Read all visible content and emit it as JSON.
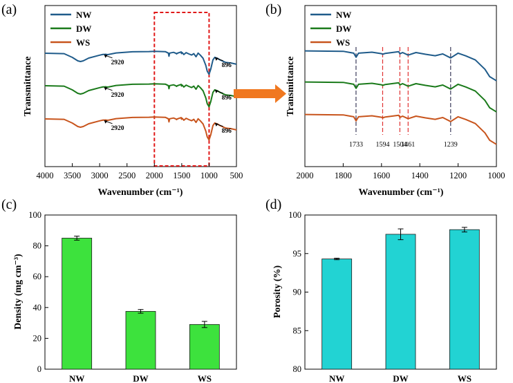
{
  "colors": {
    "NW": "#1f5b8a",
    "DW": "#1a7a1a",
    "WS": "#c8541c",
    "density_bar": "#3de23d",
    "porosity_bar": "#22d3d3",
    "highlight": "#e01818",
    "arrow": "#f07820",
    "peak_dark": "#3a3a5a",
    "peak_red": "#e03030"
  },
  "chart_data": [
    {
      "type": "line",
      "panel": "(a)",
      "title": "",
      "xlabel": "Wavenumber (cm⁻¹)",
      "ylabel": "Transmittance",
      "xlim": [
        4000,
        500
      ],
      "xticks": [
        4000,
        3500,
        3000,
        2500,
        2000,
        1500,
        1000,
        500
      ],
      "highlight_region": [
        2000,
        1000
      ],
      "legend": [
        "NW",
        "DW",
        "WS"
      ],
      "legend_position": "top-left",
      "series": [
        {
          "name": "NW",
          "x": [
            4000,
            3650,
            3500,
            3400,
            3350,
            3300,
            3200,
            3000,
            2935,
            2920,
            2900,
            2850,
            2700,
            2400,
            2100,
            2000,
            1800,
            1745,
            1733,
            1720,
            1650,
            1600,
            1594,
            1580,
            1510,
            1504,
            1490,
            1461,
            1420,
            1370,
            1320,
            1280,
            1239,
            1200,
            1160,
            1110,
            1060,
            1035,
            1000,
            970,
            930,
            896,
            850,
            800,
            700,
            600,
            500
          ],
          "y": [
            4,
            4.6,
            10,
            15,
            16,
            15,
            11,
            6.8,
            5.6,
            5.8,
            5.5,
            6.0,
            3.6,
            1.9,
            1.6,
            1.2,
            1.7,
            3.8,
            8.3,
            3.8,
            2.7,
            4.3,
            5.0,
            4.0,
            2.1,
            4.5,
            3.1,
            5.9,
            3.1,
            5.0,
            6.6,
            4.6,
            9.1,
            3.8,
            6.8,
            11.3,
            21.7,
            29.9,
            34.5,
            27.1,
            13.6,
            9.9,
            11.3,
            13.6,
            17.2,
            18.1,
            19.9
          ]
        },
        {
          "name": "DW",
          "x": [
            4000,
            3650,
            3500,
            3400,
            3350,
            3300,
            3200,
            3000,
            2935,
            2920,
            2900,
            2850,
            2700,
            2400,
            2100,
            2000,
            1800,
            1745,
            1733,
            1720,
            1650,
            1600,
            1594,
            1580,
            1510,
            1504,
            1490,
            1461,
            1420,
            1370,
            1320,
            1280,
            1239,
            1200,
            1160,
            1110,
            1060,
            1035,
            1000,
            970,
            930,
            896,
            850,
            800,
            700,
            600,
            500
          ],
          "y": [
            4,
            4.6,
            10,
            15,
            16,
            15,
            11,
            6.8,
            5.6,
            5.8,
            5.5,
            6.0,
            3.6,
            1.9,
            1.6,
            1.2,
            1.7,
            3.8,
            8.3,
            3.8,
            2.7,
            4.3,
            5.0,
            4.0,
            2.1,
            4.5,
            3.1,
            5.9,
            3.1,
            5.0,
            6.6,
            4.6,
            9.1,
            3.8,
            6.8,
            11.3,
            21.7,
            29.9,
            34.5,
            27.1,
            13.6,
            9.9,
            11.3,
            13.6,
            17.2,
            18.1,
            19.9
          ]
        },
        {
          "name": "WS",
          "x": [
            4000,
            3650,
            3500,
            3400,
            3350,
            3300,
            3200,
            3000,
            2935,
            2920,
            2900,
            2850,
            2700,
            2400,
            2100,
            2000,
            1800,
            1745,
            1733,
            1720,
            1650,
            1600,
            1594,
            1580,
            1510,
            1504,
            1490,
            1461,
            1420,
            1370,
            1320,
            1280,
            1239,
            1200,
            1160,
            1110,
            1060,
            1035,
            1000,
            970,
            930,
            896,
            850,
            800,
            700,
            600,
            500
          ],
          "y": [
            4,
            4.6,
            10,
            15,
            16,
            15,
            11,
            6.8,
            5.6,
            5.8,
            5.5,
            6.0,
            3.6,
            1.9,
            1.6,
            1.2,
            1.7,
            3.8,
            8.3,
            3.8,
            2.7,
            4.3,
            5.0,
            4.0,
            2.1,
            4.5,
            3.1,
            5.9,
            3.1,
            5.0,
            6.6,
            4.6,
            9.1,
            3.8,
            6.8,
            11.3,
            21.7,
            29.9,
            34.5,
            27.1,
            13.6,
            9.9,
            11.3,
            13.6,
            17.2,
            18.1,
            19.9
          ]
        }
      ],
      "series_offsets": [
        0,
        47,
        95
      ],
      "annotations": [
        {
          "series": "NW",
          "text": "2920",
          "x": 2920,
          "side": "right"
        },
        {
          "series": "NW",
          "text": "896",
          "x": 896,
          "side": "right"
        },
        {
          "series": "DW",
          "text": "2920",
          "x": 2920,
          "side": "right"
        },
        {
          "series": "DW",
          "text": "896",
          "x": 896,
          "side": "right"
        },
        {
          "series": "WS",
          "text": "2920",
          "x": 2920,
          "side": "right"
        },
        {
          "series": "WS",
          "text": "896",
          "x": 896,
          "side": "right"
        }
      ]
    },
    {
      "type": "line",
      "panel": "(b)",
      "title": "",
      "xlabel": "Wavenumber (cm⁻¹)",
      "ylabel": "Transmittance",
      "xlim": [
        2000,
        1000
      ],
      "xticks": [
        2000,
        1800,
        1600,
        1400,
        1200,
        1000
      ],
      "legend": [
        "NW",
        "DW",
        "WS"
      ],
      "legend_position": "top-left",
      "series": [
        {
          "name": "NW",
          "x": [
            2000,
            1800,
            1745,
            1733,
            1720,
            1650,
            1600,
            1594,
            1580,
            1510,
            1504,
            1490,
            1461,
            1420,
            1370,
            1320,
            1280,
            1239,
            1200,
            1160,
            1110,
            1060,
            1035,
            1000
          ],
          "y": [
            1.2,
            1.7,
            3.8,
            8.3,
            3.8,
            2.7,
            4.3,
            5.0,
            4.0,
            2.1,
            4.5,
            3.1,
            5.9,
            3.1,
            5.0,
            6.6,
            4.6,
            9.1,
            3.8,
            6.8,
            11.3,
            21.7,
            29.9,
            34.5
          ]
        },
        {
          "name": "DW",
          "x": [
            2000,
            1800,
            1745,
            1733,
            1720,
            1650,
            1600,
            1594,
            1580,
            1510,
            1504,
            1490,
            1461,
            1420,
            1370,
            1320,
            1280,
            1239,
            1200,
            1160,
            1110,
            1060,
            1035,
            1000
          ],
          "y": [
            1.2,
            1.7,
            3.8,
            8.3,
            3.8,
            2.7,
            4.3,
            5.0,
            4.0,
            2.1,
            4.5,
            3.1,
            5.9,
            3.1,
            5.0,
            6.6,
            4.6,
            9.1,
            3.8,
            6.8,
            11.3,
            21.7,
            29.9,
            34.5
          ]
        },
        {
          "name": "WS",
          "x": [
            2000,
            1800,
            1745,
            1733,
            1720,
            1650,
            1600,
            1594,
            1580,
            1510,
            1504,
            1490,
            1461,
            1420,
            1370,
            1320,
            1280,
            1239,
            1200,
            1160,
            1110,
            1060,
            1035,
            1000
          ],
          "y": [
            1.2,
            1.7,
            3.8,
            8.3,
            3.8,
            2.7,
            4.3,
            5.0,
            4.0,
            2.1,
            4.5,
            3.1,
            5.9,
            3.1,
            5.0,
            6.6,
            4.6,
            9.1,
            3.8,
            6.8,
            11.3,
            21.7,
            29.9,
            34.5
          ]
        }
      ],
      "series_offsets": [
        0,
        45,
        92
      ],
      "peak_lines": [
        {
          "x": 1733,
          "label": "1733",
          "style": "dark"
        },
        {
          "x": 1594,
          "label": "1594",
          "style": "red"
        },
        {
          "x": 1504,
          "label": "1504",
          "style": "red"
        },
        {
          "x": 1461,
          "label": "1461",
          "style": "red"
        },
        {
          "x": 1239,
          "label": "1239",
          "style": "dark"
        }
      ]
    },
    {
      "type": "bar",
      "panel": "(c)",
      "title": "",
      "xlabel": "",
      "ylabel": "Density (mg cm⁻³)",
      "categories": [
        "NW",
        "DW",
        "WS"
      ],
      "values": [
        85,
        37.5,
        29
      ],
      "errors": [
        1.3,
        1.2,
        2.0
      ],
      "ylim": [
        0,
        100
      ],
      "yticks": [
        0,
        20,
        40,
        60,
        80,
        100
      ]
    },
    {
      "type": "bar",
      "panel": "(d)",
      "title": "",
      "xlabel": "",
      "ylabel": "Porosity (%)",
      "categories": [
        "NW",
        "DW",
        "WS"
      ],
      "values": [
        94.3,
        97.5,
        98.1
      ],
      "errors": [
        0.1,
        0.7,
        0.3
      ],
      "ylim": [
        80,
        100
      ],
      "yticks": [
        80,
        85,
        90,
        95,
        100
      ]
    }
  ]
}
